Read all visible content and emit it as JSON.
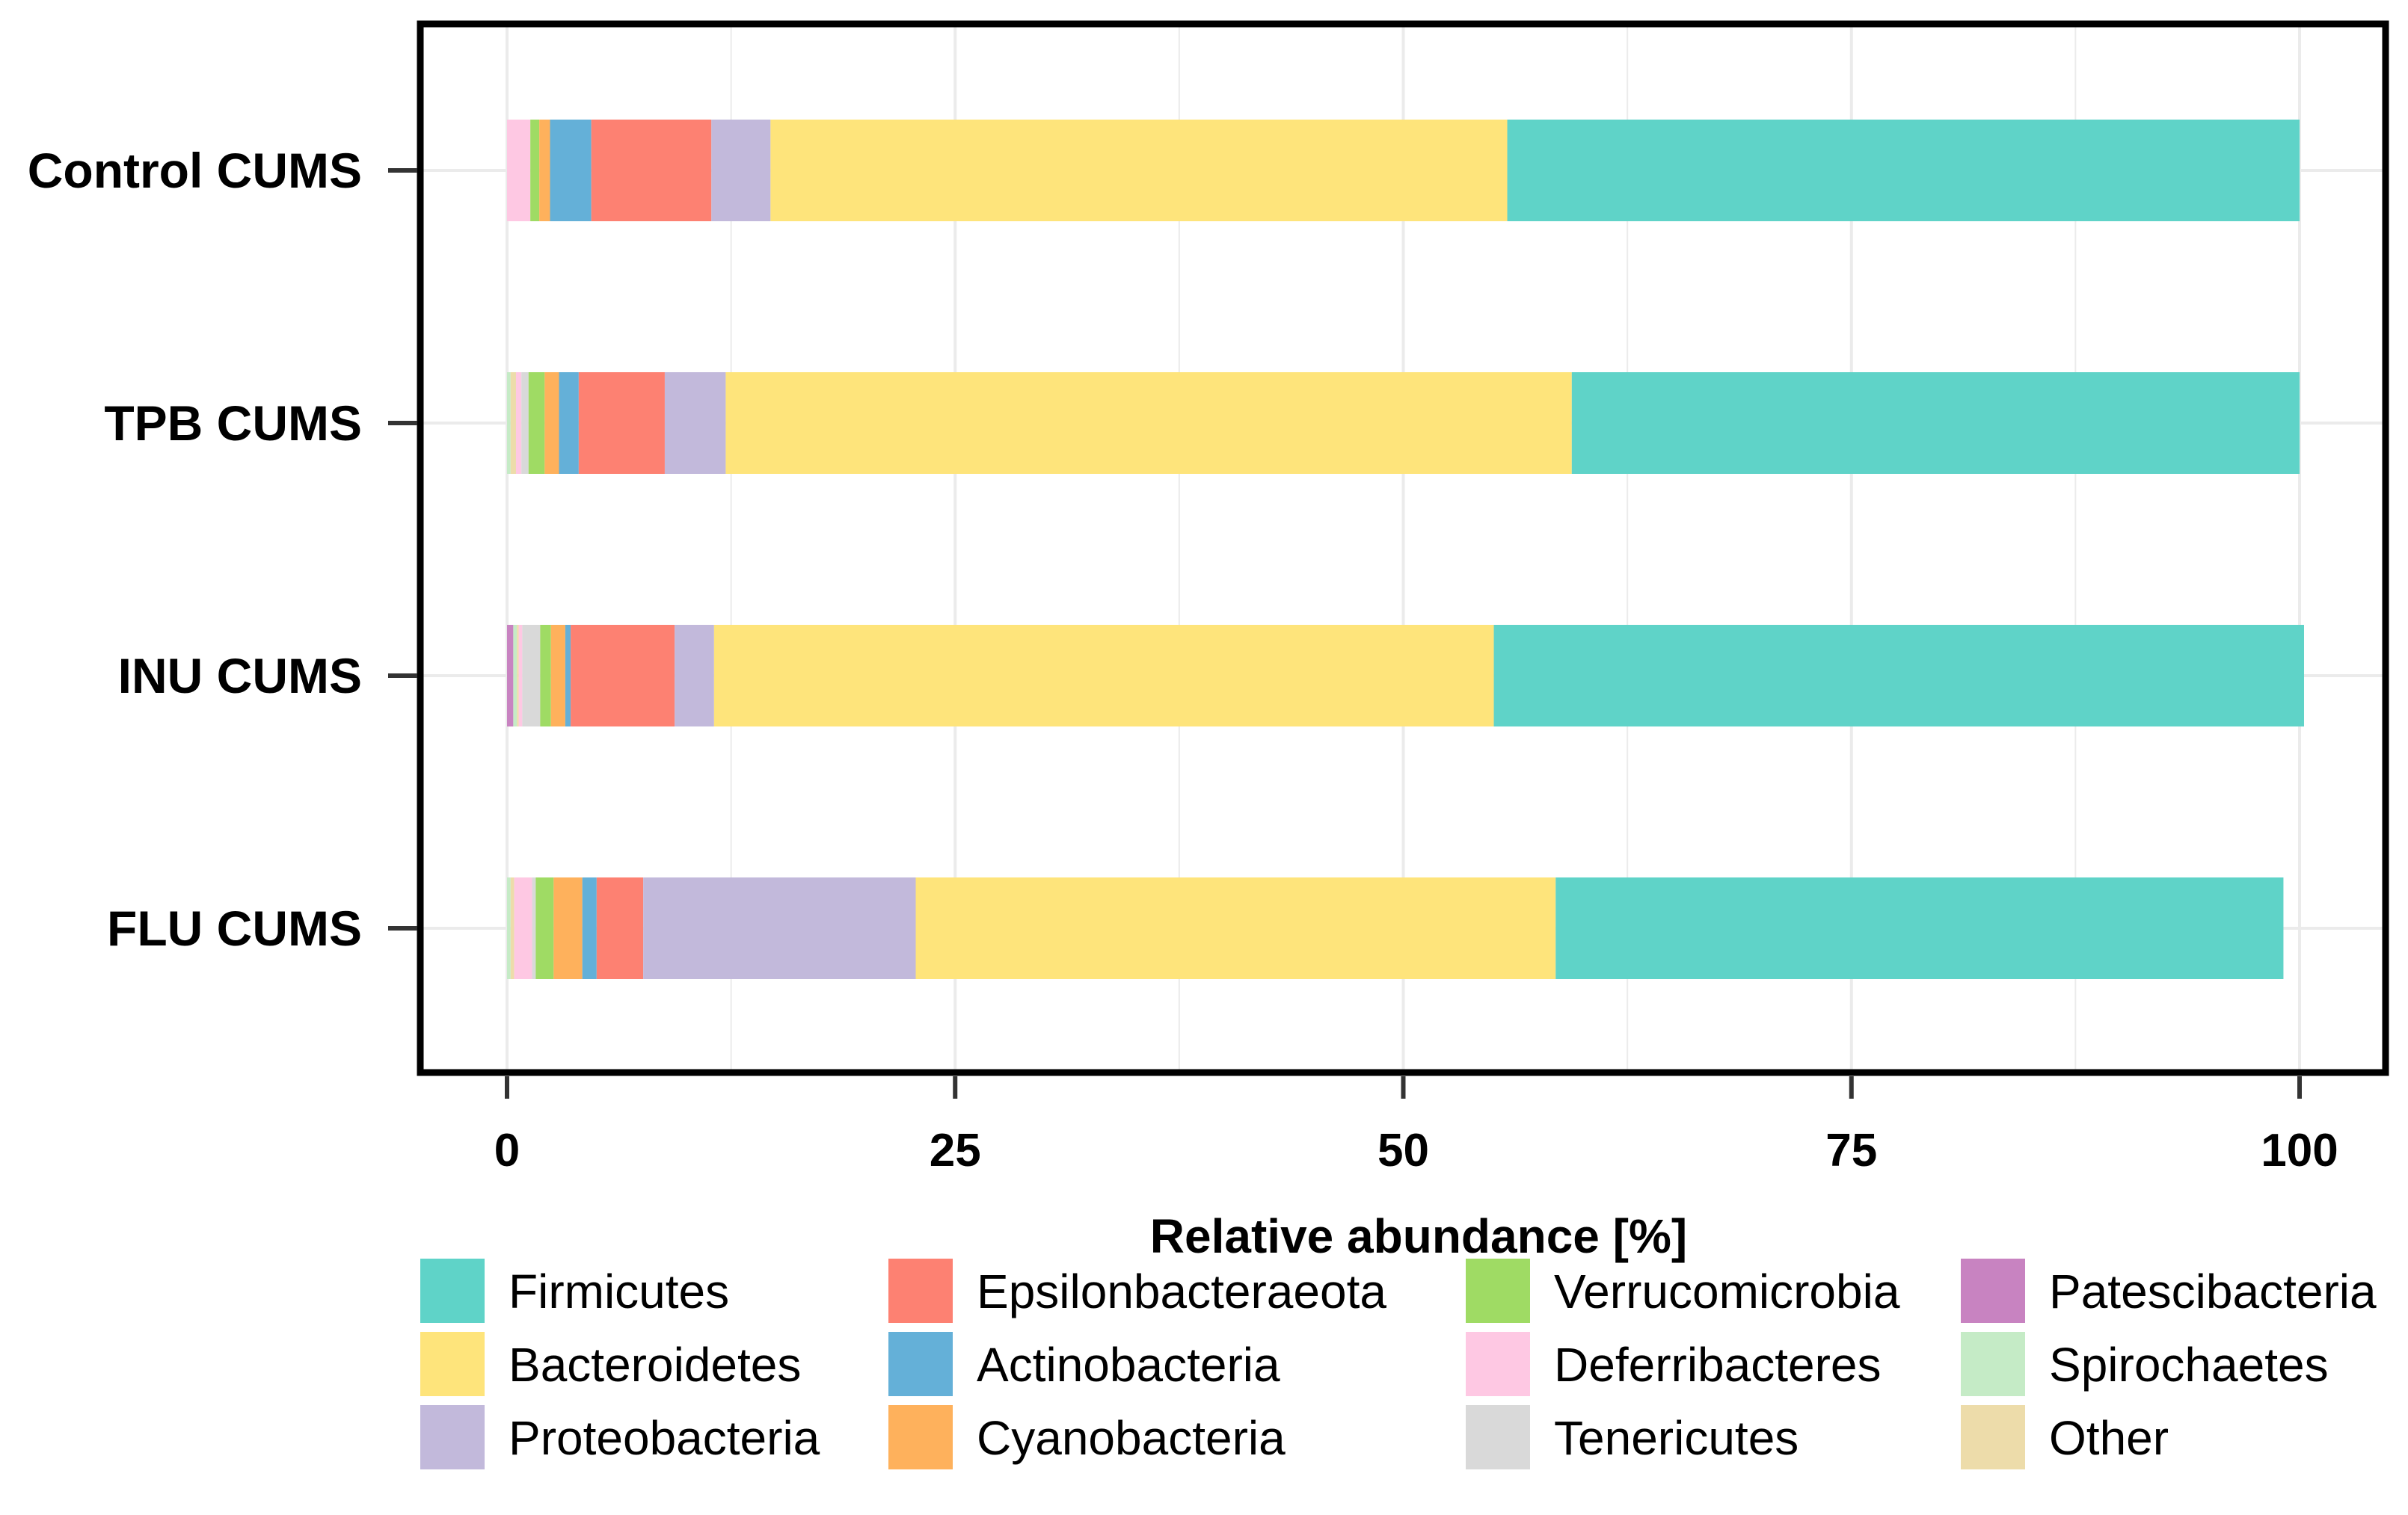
{
  "chart_data": {
    "type": "bar",
    "orientation": "horizontal",
    "stacked": true,
    "xlabel": "Relative abundance [%]",
    "ylabel": "",
    "xlim": [
      0,
      100
    ],
    "xticks": [
      "0",
      "25",
      "50",
      "75",
      "100"
    ],
    "grid": true,
    "legend_position": "bottom",
    "categories": [
      "Control CUMS",
      "TPB CUMS",
      "INU CUMS",
      "FLU CUMS"
    ],
    "stack_order": [
      "Patescibacteria",
      "Spirochaetes",
      "Other",
      "Deferribacteres",
      "Tenericutes",
      "Verrucomicrobia",
      "Cyanobacteria",
      "Actinobacteria",
      "Epsilonbacteraeota",
      "Proteobacteria",
      "Bacteroidetes",
      "Firmicutes"
    ],
    "series": [
      {
        "name": "Firmicutes",
        "color": "#5fd3c8",
        "values": [
          44.2,
          40.6,
          45.2,
          40.6
        ]
      },
      {
        "name": "Bacteroidetes",
        "color": "#fee47b",
        "values": [
          41.1,
          47.2,
          43.5,
          35.7
        ]
      },
      {
        "name": "Proteobacteria",
        "color": "#c2b9db",
        "values": [
          3.3,
          3.4,
          2.2,
          15.2
        ]
      },
      {
        "name": "Epsilonbacteraeota",
        "color": "#fd8172",
        "values": [
          6.7,
          4.8,
          5.8,
          2.6
        ]
      },
      {
        "name": "Actinobacteria",
        "color": "#64b0d8",
        "values": [
          2.3,
          1.1,
          0.3,
          0.8
        ]
      },
      {
        "name": "Cyanobacteria",
        "color": "#feb15c",
        "values": [
          0.6,
          0.8,
          0.8,
          1.6
        ]
      },
      {
        "name": "Verrucomicrobia",
        "color": "#9fdb64",
        "values": [
          0.5,
          0.9,
          0.6,
          1.0
        ]
      },
      {
        "name": "Deferribacteres",
        "color": "#fec8e3",
        "values": [
          1.3,
          0.3,
          0.2,
          1.0
        ]
      },
      {
        "name": "Tenericutes",
        "color": "#d9d9d9",
        "values": [
          0.0,
          0.4,
          1.0,
          0.2
        ]
      },
      {
        "name": "Patescibacteria",
        "color": "#c883c1",
        "values": [
          0.0,
          0.0,
          0.35,
          0.0
        ]
      },
      {
        "name": "Spirochaetes",
        "color": "#c5ebc6",
        "values": [
          0.0,
          0.2,
          0.2,
          0.2
        ]
      },
      {
        "name": "Other",
        "color": "#eddcaa",
        "values": [
          0.0,
          0.3,
          0.1,
          0.2
        ]
      }
    ],
    "legend_layout": [
      [
        "Firmicutes",
        "Bacteroidetes",
        "Proteobacteria"
      ],
      [
        "Epsilonbacteraeota",
        "Actinobacteria",
        "Cyanobacteria"
      ],
      [
        "Verrucomicrobia",
        "Deferribacteres",
        "Tenericutes"
      ],
      [
        "Patescibacteria",
        "Spirochaetes",
        "Other"
      ]
    ]
  }
}
